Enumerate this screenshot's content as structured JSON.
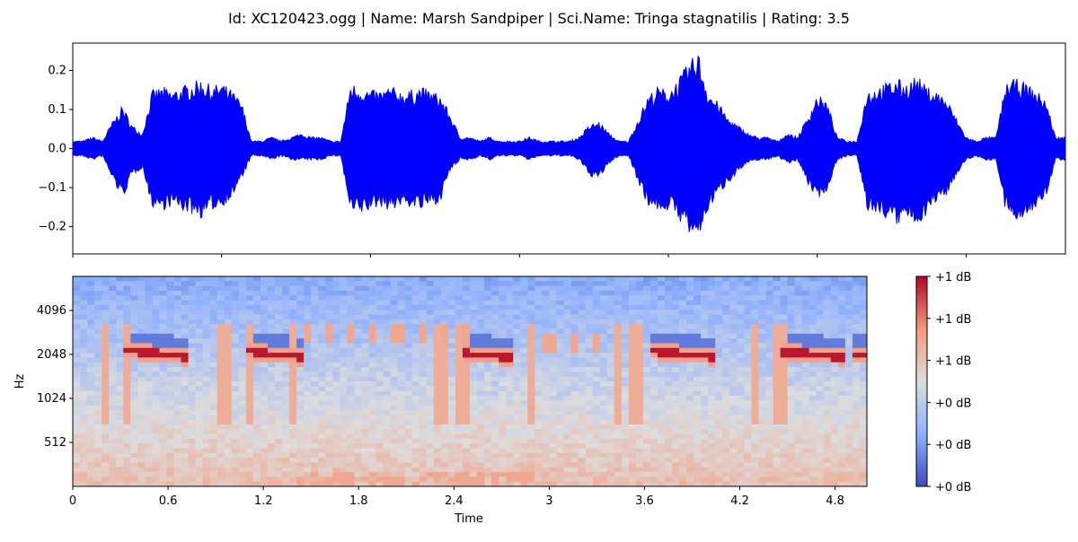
{
  "chart_data": [
    {
      "type": "line",
      "title": "Id: XC120423.ogg | Name: Marsh Sandpiper | Sci.Name: Tringa stagnatilis | Rating: 3.5",
      "xlabel": "",
      "ylabel": "",
      "xlim": [
        0,
        5.0
      ],
      "ylim": [
        -0.27,
        0.27
      ],
      "ytick_labels": [
        "−0.2",
        "−0.1",
        "0.0",
        "0.1",
        "0.2"
      ],
      "ytick_values": [
        -0.2,
        -0.1,
        0.0,
        0.1,
        0.2
      ],
      "xtick_values": [
        0,
        0.75,
        1.5,
        2.25,
        3.0,
        3.75,
        4.5,
        5.25
      ],
      "series": [
        {
          "color": "#0000ff",
          "envelope": {
            "t": [
              0.0,
              0.05,
              0.1,
              0.15,
              0.2,
              0.25,
              0.3,
              0.35,
              0.4,
              0.45,
              0.5,
              0.55,
              0.6,
              0.65,
              0.7,
              0.75,
              0.8,
              0.85,
              0.9,
              0.95,
              1.0,
              1.05,
              1.1,
              1.15,
              1.2,
              1.25,
              1.3,
              1.35,
              1.4,
              1.45,
              1.5,
              1.55,
              1.6,
              1.65,
              1.7,
              1.75,
              1.8,
              1.85,
              1.9,
              1.95,
              2.0,
              2.05,
              2.1,
              2.15,
              2.2,
              2.25,
              2.3,
              2.35,
              2.4,
              2.45,
              2.5,
              2.55,
              2.6,
              2.65,
              2.7,
              2.75,
              2.8,
              2.85,
              2.9,
              2.95,
              3.0,
              3.05,
              3.1,
              3.15,
              3.2,
              3.25,
              3.3,
              3.35,
              3.4,
              3.45,
              3.5,
              3.55,
              3.6,
              3.65,
              3.7,
              3.75,
              3.8,
              3.85,
              3.9,
              3.95,
              4.0,
              4.05,
              4.1,
              4.15,
              4.2,
              4.25,
              4.3,
              4.35,
              4.4,
              4.45,
              4.5,
              4.55,
              4.6,
              4.65,
              4.7,
              4.75,
              4.8,
              4.85,
              4.9,
              4.95,
              5.0
            ],
            "upper": [
              0.02,
              0.02,
              0.03,
              0.02,
              0.07,
              0.11,
              0.06,
              0.04,
              0.15,
              0.16,
              0.15,
              0.16,
              0.17,
              0.18,
              0.16,
              0.17,
              0.15,
              0.12,
              0.02,
              0.02,
              0.03,
              0.02,
              0.03,
              0.04,
              0.03,
              0.03,
              0.02,
              0.02,
              0.17,
              0.16,
              0.15,
              0.15,
              0.16,
              0.15,
              0.15,
              0.16,
              0.15,
              0.14,
              0.09,
              0.03,
              0.03,
              0.02,
              0.03,
              0.02,
              0.02,
              0.02,
              0.03,
              0.02,
              0.02,
              0.02,
              0.02,
              0.03,
              0.06,
              0.07,
              0.04,
              0.02,
              0.02,
              0.08,
              0.14,
              0.16,
              0.15,
              0.18,
              0.22,
              0.25,
              0.15,
              0.12,
              0.08,
              0.06,
              0.04,
              0.03,
              0.03,
              0.02,
              0.04,
              0.03,
              0.08,
              0.14,
              0.12,
              0.03,
              0.02,
              0.02,
              0.15,
              0.16,
              0.17,
              0.18,
              0.17,
              0.19,
              0.16,
              0.15,
              0.13,
              0.08,
              0.03,
              0.02,
              0.03,
              0.03,
              0.17,
              0.18,
              0.17,
              0.15,
              0.13,
              0.03,
              0.03
            ],
            "lower": [
              -0.02,
              -0.02,
              -0.03,
              -0.02,
              -0.08,
              -0.13,
              -0.07,
              -0.05,
              -0.15,
              -0.16,
              -0.15,
              -0.16,
              -0.17,
              -0.18,
              -0.16,
              -0.15,
              -0.13,
              -0.08,
              -0.02,
              -0.02,
              -0.03,
              -0.02,
              -0.03,
              -0.03,
              -0.03,
              -0.03,
              -0.02,
              -0.02,
              -0.17,
              -0.17,
              -0.16,
              -0.15,
              -0.16,
              -0.15,
              -0.15,
              -0.16,
              -0.15,
              -0.14,
              -0.06,
              -0.03,
              -0.03,
              -0.02,
              -0.03,
              -0.02,
              -0.02,
              -0.02,
              -0.03,
              -0.02,
              -0.02,
              -0.02,
              -0.02,
              -0.03,
              -0.07,
              -0.08,
              -0.04,
              -0.02,
              -0.02,
              -0.09,
              -0.15,
              -0.16,
              -0.16,
              -0.18,
              -0.22,
              -0.24,
              -0.16,
              -0.12,
              -0.09,
              -0.06,
              -0.04,
              -0.03,
              -0.03,
              -0.02,
              -0.04,
              -0.03,
              -0.09,
              -0.13,
              -0.11,
              -0.03,
              -0.02,
              -0.02,
              -0.16,
              -0.17,
              -0.18,
              -0.2,
              -0.18,
              -0.2,
              -0.17,
              -0.14,
              -0.12,
              -0.07,
              -0.03,
              -0.02,
              -0.03,
              -0.03,
              -0.17,
              -0.19,
              -0.17,
              -0.16,
              -0.13,
              -0.03,
              -0.03
            ]
          }
        }
      ]
    },
    {
      "type": "heatmap",
      "xlabel": "Time",
      "ylabel": "Hz",
      "xlim": [
        0,
        5.0
      ],
      "xtick_labels": [
        "0",
        "0.6",
        "1.2",
        "1.8",
        "2.4",
        "3",
        "3.6",
        "4.2",
        "4.8"
      ],
      "xtick_values": [
        0,
        0.6,
        1.2,
        1.8,
        2.4,
        3.0,
        3.6,
        4.2,
        4.8
      ],
      "ytick_labels": [
        "512",
        "1024",
        "2048",
        "4096"
      ],
      "ytick_values": [
        512,
        1024,
        2048,
        4096
      ],
      "yscale": "log2",
      "ylim": [
        256,
        7000
      ],
      "colormap": "coolwarm",
      "colormap_stops": [
        "#3b4cc0",
        "#8db0fe",
        "#dddddd",
        "#f49a7b",
        "#b40426"
      ],
      "colorbar_labels": [
        "+1 dB",
        "+1 dB",
        "+1 dB",
        "+0 dB",
        "+0 dB",
        "+0 dB"
      ],
      "calls": [
        {
          "t0": 0.3,
          "t1": 0.72,
          "f0": 2200,
          "f1": 1950
        },
        {
          "t0": 1.1,
          "t1": 1.45,
          "f0": 2150,
          "f1": 1950
        },
        {
          "t0": 2.45,
          "t1": 2.75,
          "f0": 2100,
          "f1": 1950
        },
        {
          "t0": 3.65,
          "t1": 4.05,
          "f0": 2150,
          "f1": 1950
        },
        {
          "t0": 4.45,
          "t1": 4.85,
          "f0": 2150,
          "f1": 1950
        },
        {
          "t0": 4.9,
          "t1": 5.0,
          "f0": 2050,
          "f1": 2050
        }
      ],
      "trills": [
        {
          "t0": 1.4,
          "t1": 2.5,
          "f0": 2400,
          "f1": 3400
        },
        {
          "t0": 2.95,
          "t1": 3.3,
          "f0": 2100,
          "f1": 2800
        }
      ],
      "transients": [
        0.2,
        0.35,
        0.95,
        1.1,
        1.4,
        2.32,
        2.45,
        2.9,
        3.42,
        3.55,
        4.3,
        4.45
      ]
    }
  ]
}
